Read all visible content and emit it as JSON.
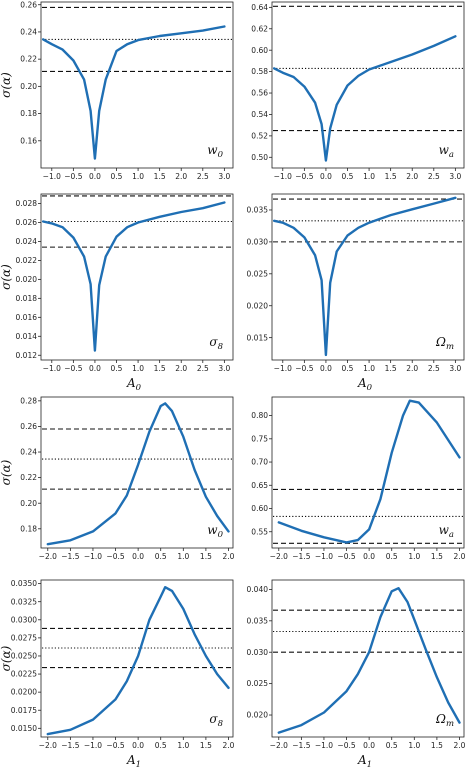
{
  "colors": {
    "curve": "#1f6fb4",
    "ref": "#111111",
    "axis": "#222222"
  },
  "chart_data": [
    {
      "type": "line",
      "panel": "top-left",
      "corner_label": "w0",
      "ylabel": "σ(α)",
      "xlabel": "",
      "xlim": [
        -1.25,
        3.2
      ],
      "ylim": [
        0.14,
        0.262
      ],
      "xticks": [
        -1.0,
        -0.5,
        0.0,
        0.5,
        1.0,
        1.5,
        2.0,
        2.5,
        3.0
      ],
      "xtick_labels": [
        "−1.0",
        "−0.5",
        "0.0",
        "0.5",
        "1.0",
        "1.5",
        "2.0",
        "2.5",
        "3.0"
      ],
      "yticks": [
        0.16,
        0.18,
        0.2,
        0.22,
        0.24,
        0.26
      ],
      "ytick_labels": [
        "0.16",
        "0.18",
        "0.20",
        "0.22",
        "0.24",
        "0.26"
      ],
      "hlines": [
        {
          "y": 0.258,
          "style": "dashed"
        },
        {
          "y": 0.2345,
          "style": "dotted"
        },
        {
          "y": 0.211,
          "style": "dashed"
        }
      ],
      "x": [
        -1.2,
        -1.0,
        -0.75,
        -0.5,
        -0.25,
        -0.1,
        0.0,
        0.1,
        0.25,
        0.5,
        0.75,
        1.0,
        1.5,
        2.0,
        2.5,
        3.0
      ],
      "y": [
        0.2345,
        0.231,
        0.227,
        0.219,
        0.205,
        0.182,
        0.147,
        0.182,
        0.205,
        0.226,
        0.231,
        0.234,
        0.237,
        0.239,
        0.241,
        0.244
      ]
    },
    {
      "type": "line",
      "panel": "top-right",
      "corner_label": "wa",
      "ylabel": "",
      "xlabel": "",
      "xlim": [
        -1.25,
        3.2
      ],
      "ylim": [
        0.49,
        0.645
      ],
      "xticks": [
        -1.0,
        -0.5,
        0.0,
        0.5,
        1.0,
        1.5,
        2.0,
        2.5,
        3.0
      ],
      "xtick_labels": [
        "−1.0",
        "−0.5",
        "0.0",
        "0.5",
        "1.0",
        "1.5",
        "2.0",
        "2.5",
        "3.0"
      ],
      "yticks": [
        0.5,
        0.52,
        0.54,
        0.56,
        0.58,
        0.6,
        0.62,
        0.64
      ],
      "ytick_labels": [
        "0.50",
        "0.52",
        "0.54",
        "0.56",
        "0.58",
        "0.60",
        "0.62",
        "0.64"
      ],
      "hlines": [
        {
          "y": 0.641,
          "style": "dashed"
        },
        {
          "y": 0.583,
          "style": "dotted"
        },
        {
          "y": 0.525,
          "style": "dashed"
        }
      ],
      "x": [
        -1.2,
        -1.0,
        -0.75,
        -0.5,
        -0.25,
        -0.1,
        0.0,
        0.1,
        0.25,
        0.5,
        0.75,
        1.0,
        1.5,
        2.0,
        2.5,
        3.0
      ],
      "y": [
        0.583,
        0.579,
        0.575,
        0.566,
        0.551,
        0.531,
        0.497,
        0.527,
        0.549,
        0.567,
        0.576,
        0.582,
        0.589,
        0.596,
        0.604,
        0.613
      ]
    },
    {
      "type": "line",
      "panel": "mid-left",
      "corner_label": "σ8",
      "ylabel": "σ(α)",
      "xlabel": "A0",
      "xlim": [
        -1.25,
        3.2
      ],
      "ylim": [
        0.0115,
        0.029
      ],
      "xticks": [
        -1.0,
        -0.5,
        0.0,
        0.5,
        1.0,
        1.5,
        2.0,
        2.5,
        3.0
      ],
      "xtick_labels": [
        "−1.0",
        "−0.5",
        "0.0",
        "0.5",
        "1.0",
        "1.5",
        "2.0",
        "2.5",
        "3.0"
      ],
      "yticks": [
        0.012,
        0.014,
        0.016,
        0.018,
        0.02,
        0.022,
        0.024,
        0.026,
        0.028
      ],
      "ytick_labels": [
        "0.012",
        "0.014",
        "0.016",
        "0.018",
        "0.020",
        "0.022",
        "0.024",
        "0.026",
        "0.028"
      ],
      "hlines": [
        {
          "y": 0.0288,
          "style": "dashed"
        },
        {
          "y": 0.0261,
          "style": "dotted"
        },
        {
          "y": 0.0234,
          "style": "dashed"
        }
      ],
      "x": [
        -1.2,
        -1.0,
        -0.75,
        -0.5,
        -0.25,
        -0.1,
        0.0,
        0.1,
        0.25,
        0.5,
        0.75,
        1.0,
        1.5,
        2.0,
        2.5,
        3.0
      ],
      "y": [
        0.0261,
        0.0259,
        0.0255,
        0.0244,
        0.0224,
        0.0195,
        0.0125,
        0.0194,
        0.0224,
        0.0245,
        0.0255,
        0.026,
        0.0266,
        0.0271,
        0.0275,
        0.0281
      ]
    },
    {
      "type": "line",
      "panel": "mid-right",
      "corner_label": "Ωm",
      "ylabel": "",
      "xlabel": "A0",
      "xlim": [
        -1.25,
        3.2
      ],
      "ylim": [
        0.0115,
        0.0375
      ],
      "xticks": [
        -1.0,
        -0.5,
        0.0,
        0.5,
        1.0,
        1.5,
        2.0,
        2.5,
        3.0
      ],
      "xtick_labels": [
        "−1.0",
        "−0.5",
        "0.0",
        "0.5",
        "1.0",
        "1.5",
        "2.0",
        "2.5",
        "3.0"
      ],
      "yticks": [
        0.015,
        0.02,
        0.025,
        0.03,
        0.035
      ],
      "ytick_labels": [
        "0.015",
        "0.020",
        "0.025",
        "0.030",
        "0.035"
      ],
      "hlines": [
        {
          "y": 0.0367,
          "style": "dashed"
        },
        {
          "y": 0.0333,
          "style": "dotted"
        },
        {
          "y": 0.03,
          "style": "dashed"
        }
      ],
      "x": [
        -1.2,
        -1.0,
        -0.75,
        -0.5,
        -0.25,
        -0.1,
        0.0,
        0.1,
        0.25,
        0.5,
        0.75,
        1.0,
        1.5,
        2.0,
        2.5,
        3.0
      ],
      "y": [
        0.0333,
        0.033,
        0.0322,
        0.0307,
        0.0279,
        0.024,
        0.0123,
        0.0236,
        0.0285,
        0.031,
        0.0322,
        0.033,
        0.0342,
        0.0351,
        0.036,
        0.0369
      ]
    },
    {
      "type": "line",
      "panel": "lower-left",
      "corner_label": "w0",
      "ylabel": "σ(α)",
      "xlabel": "",
      "xlim": [
        -2.15,
        2.1
      ],
      "ylim": [
        0.165,
        0.283
      ],
      "xticks": [
        -2.0,
        -1.5,
        -1.0,
        -0.5,
        0.0,
        0.5,
        1.0,
        1.5,
        2.0
      ],
      "xtick_labels": [
        "−2.0",
        "−1.5",
        "−1.0",
        "−0.5",
        "0.0",
        "0.5",
        "1.0",
        "1.5",
        "2.0"
      ],
      "yticks": [
        0.18,
        0.2,
        0.22,
        0.24,
        0.26,
        0.28
      ],
      "ytick_labels": [
        "0.18",
        "0.20",
        "0.22",
        "0.24",
        "0.26",
        "0.28"
      ],
      "hlines": [
        {
          "y": 0.258,
          "style": "dashed"
        },
        {
          "y": 0.2345,
          "style": "dotted"
        },
        {
          "y": 0.211,
          "style": "dashed"
        }
      ],
      "x": [
        -2.0,
        -1.5,
        -1.0,
        -0.5,
        -0.25,
        0.0,
        0.25,
        0.5,
        0.6,
        0.75,
        1.0,
        1.25,
        1.5,
        1.75,
        2.0
      ],
      "y": [
        0.168,
        0.171,
        0.178,
        0.192,
        0.206,
        0.23,
        0.256,
        0.276,
        0.278,
        0.272,
        0.252,
        0.226,
        0.205,
        0.19,
        0.178
      ]
    },
    {
      "type": "line",
      "panel": "lower-right",
      "corner_label": "wa",
      "ylabel": "",
      "xlabel": "",
      "xlim": [
        -2.15,
        2.1
      ],
      "ylim": [
        0.515,
        0.84
      ],
      "xticks": [
        -2.0,
        -1.5,
        -1.0,
        -0.5,
        0.0,
        0.5,
        1.0,
        1.5,
        2.0
      ],
      "xtick_labels": [
        "−2.0",
        "−1.5",
        "−1.0",
        "−0.5",
        "0.0",
        "0.5",
        "1.0",
        "1.5",
        "2.0"
      ],
      "yticks": [
        0.55,
        0.6,
        0.65,
        0.7,
        0.75,
        0.8
      ],
      "ytick_labels": [
        "0.55",
        "0.60",
        "0.65",
        "0.70",
        "0.75",
        "0.80"
      ],
      "hlines": [
        {
          "y": 0.641,
          "style": "dashed"
        },
        {
          "y": 0.583,
          "style": "dotted"
        },
        {
          "y": 0.525,
          "style": "dashed"
        }
      ],
      "x": [
        -2.0,
        -1.5,
        -1.0,
        -0.5,
        -0.25,
        0.0,
        0.25,
        0.5,
        0.75,
        0.9,
        1.1,
        1.5,
        2.0
      ],
      "y": [
        0.57,
        0.552,
        0.538,
        0.527,
        0.532,
        0.555,
        0.62,
        0.72,
        0.8,
        0.832,
        0.828,
        0.785,
        0.71
      ]
    },
    {
      "type": "line",
      "panel": "bottom-left",
      "corner_label": "σ8",
      "ylabel": "σ(α)",
      "xlabel": "A1",
      "xlim": [
        -2.15,
        2.1
      ],
      "ylim": [
        0.0138,
        0.0355
      ],
      "xticks": [
        -2.0,
        -1.5,
        -1.0,
        -0.5,
        0.0,
        0.5,
        1.0,
        1.5,
        2.0
      ],
      "xtick_labels": [
        "−2.0",
        "−1.5",
        "−1.0",
        "−0.5",
        "0.0",
        "0.5",
        "1.0",
        "1.5",
        "2.0"
      ],
      "yticks": [
        0.015,
        0.0175,
        0.02,
        0.0225,
        0.025,
        0.0275,
        0.03,
        0.0325,
        0.035
      ],
      "ytick_labels": [
        "0.0150",
        "0.0175",
        "0.0200",
        "0.0225",
        "0.0250",
        "0.0275",
        "0.0300",
        "0.0325",
        "0.0350"
      ],
      "hlines": [
        {
          "y": 0.0288,
          "style": "dashed"
        },
        {
          "y": 0.0261,
          "style": "dotted"
        },
        {
          "y": 0.0234,
          "style": "dashed"
        }
      ],
      "x": [
        -2.0,
        -1.5,
        -1.0,
        -0.5,
        -0.25,
        0.0,
        0.25,
        0.5,
        0.6,
        0.75,
        1.0,
        1.25,
        1.5,
        1.75,
        2.0
      ],
      "y": [
        0.0142,
        0.0148,
        0.0162,
        0.019,
        0.0215,
        0.025,
        0.03,
        0.0332,
        0.0345,
        0.034,
        0.0315,
        0.028,
        0.025,
        0.0225,
        0.0206
      ]
    },
    {
      "type": "line",
      "panel": "bottom-right",
      "corner_label": "Ωm",
      "ylabel": "",
      "xlabel": "A1",
      "xlim": [
        -2.15,
        2.1
      ],
      "ylim": [
        0.0165,
        0.0415
      ],
      "xticks": [
        -2.0,
        -1.5,
        -1.0,
        -0.5,
        0.0,
        0.5,
        1.0,
        1.5,
        2.0
      ],
      "xtick_labels": [
        "−2.0",
        "−1.5",
        "−1.0",
        "−0.5",
        "0.0",
        "0.5",
        "1.0",
        "1.5",
        "2.0"
      ],
      "yticks": [
        0.02,
        0.025,
        0.03,
        0.035,
        0.04
      ],
      "ytick_labels": [
        "0.020",
        "0.025",
        "0.030",
        "0.035",
        "0.040"
      ],
      "hlines": [
        {
          "y": 0.0367,
          "style": "dashed"
        },
        {
          "y": 0.0333,
          "style": "dotted"
        },
        {
          "y": 0.03,
          "style": "dashed"
        }
      ],
      "x": [
        -2.0,
        -1.5,
        -1.0,
        -0.5,
        -0.25,
        0.0,
        0.25,
        0.5,
        0.65,
        0.85,
        1.0,
        1.25,
        1.5,
        1.75,
        2.0
      ],
      "y": [
        0.0172,
        0.0184,
        0.0204,
        0.0238,
        0.0265,
        0.03,
        0.0356,
        0.0397,
        0.0402,
        0.038,
        0.0352,
        0.0305,
        0.026,
        0.022,
        0.0188
      ]
    }
  ]
}
